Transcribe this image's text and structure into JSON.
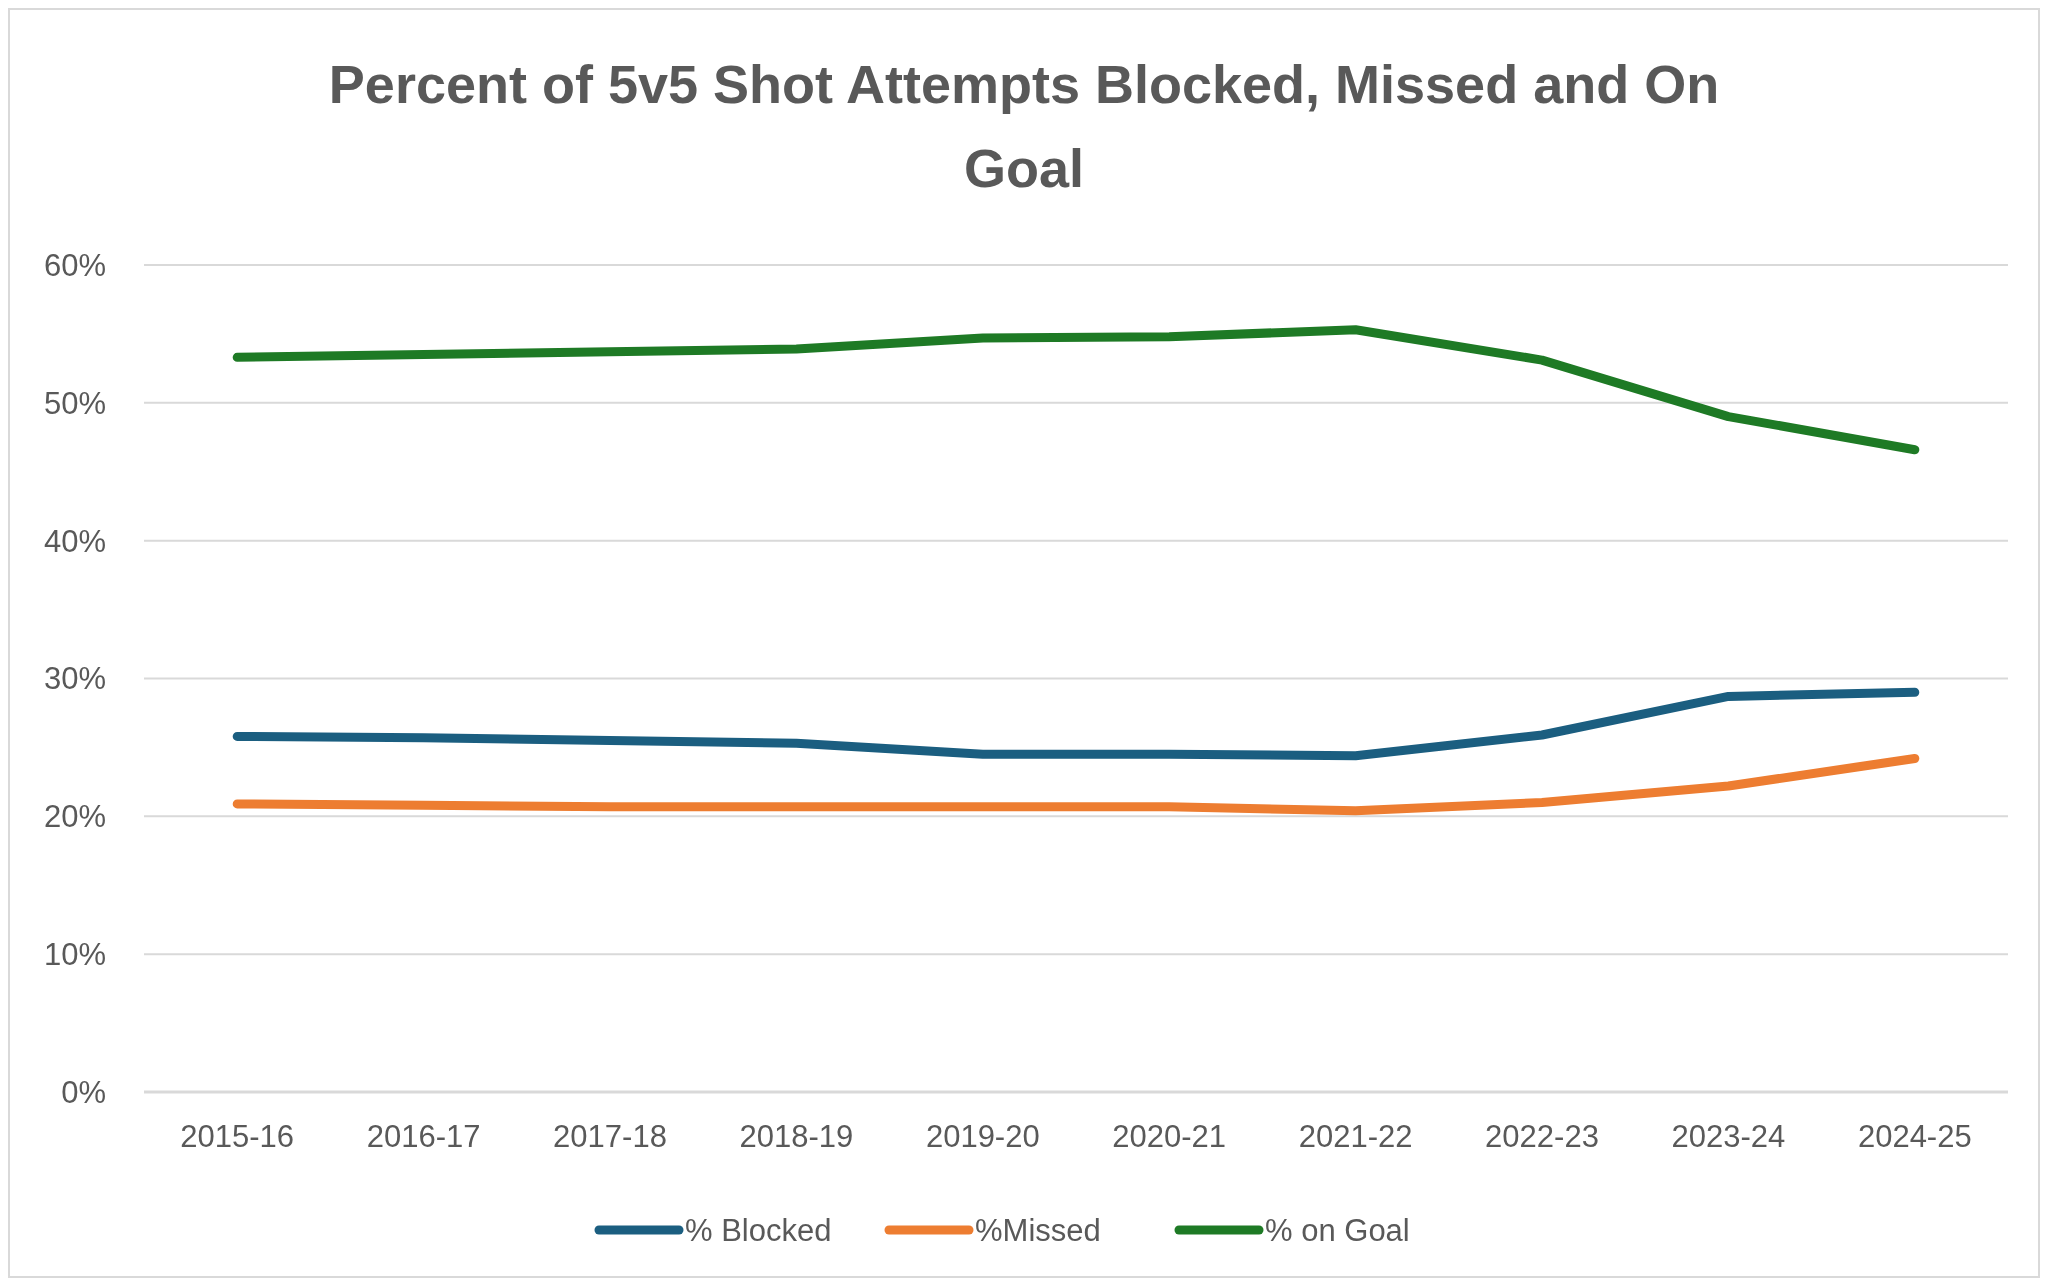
{
  "chart_data": {
    "type": "line",
    "title": "Percent of 5v5 Shot Attempts Blocked, Missed and On Goal",
    "categories": [
      "2015-16",
      "2016-17",
      "2017-18",
      "2018-19",
      "2019-20",
      "2020-21",
      "2021-22",
      "2022-23",
      "2023-24",
      "2024-25"
    ],
    "series": [
      {
        "name": "% Blocked",
        "color": "#1b5e80",
        "values": [
          25.8,
          25.7,
          25.5,
          25.3,
          24.5,
          24.5,
          24.4,
          25.9,
          28.7,
          29.0
        ]
      },
      {
        "name": "%Missed",
        "color": "#ed7d31",
        "values": [
          20.9,
          20.8,
          20.7,
          20.7,
          20.7,
          20.7,
          20.4,
          21.0,
          22.2,
          24.2
        ]
      },
      {
        "name": "% on Goal",
        "color": "#1e7a25",
        "values": [
          53.3,
          53.5,
          53.7,
          53.9,
          54.7,
          54.8,
          55.3,
          53.1,
          49.0,
          46.6
        ]
      }
    ],
    "ylim": [
      0,
      60
    ],
    "yticks": [
      {
        "value": 0,
        "label": "0%"
      },
      {
        "value": 10,
        "label": "10%"
      },
      {
        "value": 20,
        "label": "20%"
      },
      {
        "value": 30,
        "label": "30%"
      },
      {
        "value": 40,
        "label": "40%"
      },
      {
        "value": 50,
        "label": "50%"
      },
      {
        "value": 60,
        "label": "60%"
      }
    ],
    "grid": "y",
    "legend": "bottom",
    "marker": "none",
    "line_style": "solid"
  }
}
